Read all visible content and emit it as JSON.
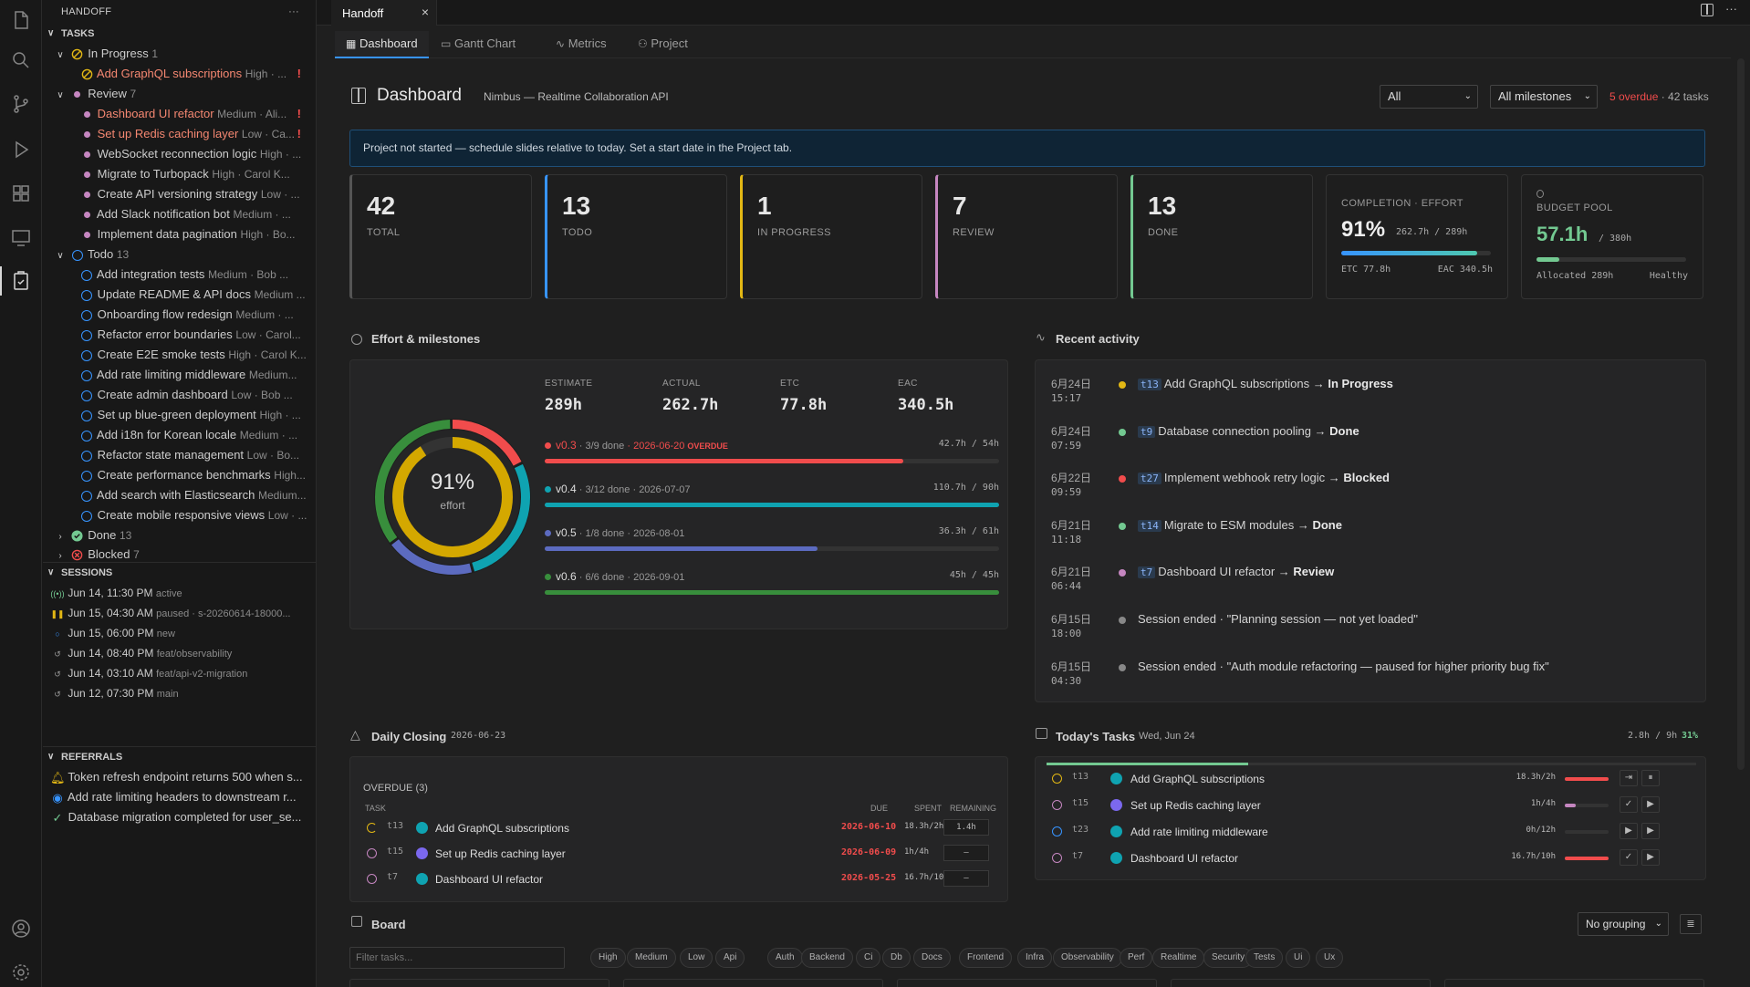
{
  "sidebar": {
    "title": "HANDOFF",
    "more": "···",
    "tasks_header": "TASKS",
    "groups": {
      "in_progress": {
        "label": "In Progress",
        "count": "1"
      },
      "review": {
        "label": "Review",
        "count": "7"
      },
      "todo": {
        "label": "Todo",
        "count": "13"
      },
      "done": {
        "label": "Done",
        "count": "13"
      },
      "blocked": {
        "label": "Blocked",
        "count": "7"
      }
    },
    "in_progress_items": [
      {
        "name": "Add GraphQL subscriptions",
        "meta": "High · ..."
      }
    ],
    "review_items": [
      {
        "name": "Dashboard UI refactor",
        "meta": "Medium · Ali..."
      },
      {
        "name": "Set up Redis caching layer",
        "meta": "Low · Ca..."
      },
      {
        "name": "WebSocket reconnection logic",
        "meta": "High · ..."
      },
      {
        "name": "Migrate to Turbopack",
        "meta": "High · Carol K..."
      },
      {
        "name": "Create API versioning strategy",
        "meta": "Low · ..."
      },
      {
        "name": "Add Slack notification bot",
        "meta": "Medium · ..."
      },
      {
        "name": "Implement data pagination",
        "meta": "High · Bo..."
      }
    ],
    "todo_items": [
      {
        "name": "Add integration tests",
        "meta": "Medium · Bob ..."
      },
      {
        "name": "Update README & API docs",
        "meta": "Medium ..."
      },
      {
        "name": "Onboarding flow redesign",
        "meta": "Medium · ..."
      },
      {
        "name": "Refactor error boundaries",
        "meta": "Low · Carol..."
      },
      {
        "name": "Create E2E smoke tests",
        "meta": "High · Carol K..."
      },
      {
        "name": "Add rate limiting middleware",
        "meta": "Medium..."
      },
      {
        "name": "Create admin dashboard",
        "meta": "Low · Bob ..."
      },
      {
        "name": "Set up blue-green deployment",
        "meta": "High · ..."
      },
      {
        "name": "Add i18n for Korean locale",
        "meta": "Medium · ..."
      },
      {
        "name": "Refactor state management",
        "meta": "Low · Bo..."
      },
      {
        "name": "Create performance benchmarks",
        "meta": "High..."
      },
      {
        "name": "Add search with Elasticsearch",
        "meta": "Medium..."
      },
      {
        "name": "Create mobile responsive views",
        "meta": "Low · ..."
      }
    ],
    "sessions_header": "SESSIONS",
    "sessions": [
      {
        "date": "Jun 14, 11:30 PM",
        "meta": "active"
      },
      {
        "date": "Jun 15, 04:30 AM",
        "meta": "paused · s-20260614-18000..."
      },
      {
        "date": "Jun 15, 06:00 PM",
        "meta": "new"
      },
      {
        "date": "Jun 14, 08:40 PM",
        "meta": "feat/observability"
      },
      {
        "date": "Jun 14, 03:10 AM",
        "meta": "feat/api-v2-migration"
      },
      {
        "date": "Jun 12, 07:30 PM",
        "meta": "main"
      }
    ],
    "referrals_header": "REFERRALS",
    "referrals": [
      "Token refresh endpoint returns 500 when s...",
      "Add rate limiting headers to downstream r...",
      "Database migration completed for user_se..."
    ]
  },
  "tab": {
    "label": "Handoff",
    "close": "×"
  },
  "subtabs": [
    "Dashboard",
    "Gantt Chart",
    "Metrics",
    "Project"
  ],
  "header": {
    "title": "Dashboard",
    "subtitle": "Nimbus — Realtime Collaboration API",
    "filter1": "All",
    "filter2": "All milestones",
    "overdue": "5 overdue",
    "tasks": "· 42 tasks"
  },
  "banner": "Project not started — schedule slides relative to today. Set a start date in the Project tab.",
  "stats": [
    {
      "num": "42",
      "label": "TOTAL",
      "color": "#555555"
    },
    {
      "num": "13",
      "label": "TODO",
      "color": "#3794ff"
    },
    {
      "num": "1",
      "label": "IN PROGRESS",
      "color": "#e2b714"
    },
    {
      "num": "7",
      "label": "REVIEW",
      "color": "#c586c0"
    },
    {
      "num": "13",
      "label": "DONE",
      "color": "#73c991"
    }
  ],
  "completion": {
    "label": "COMPLETION · EFFORT",
    "pct": "91%",
    "sub": "262.7h / 289h",
    "etc": "ETC 77.8h",
    "eac": "EAC 340.5h",
    "fill": 0.91
  },
  "budget": {
    "label": "BUDGET POOL",
    "value": "57.1h",
    "of": "/ 380h",
    "allocated": "Allocated 289h",
    "status": "Healthy",
    "fill": 0.15
  },
  "effort": {
    "title": "Effort & milestones",
    "donut_pct": "91%",
    "donut_label": "effort",
    "metrics": [
      {
        "label": "ESTIMATE",
        "value": "289h"
      },
      {
        "label": "ACTUAL",
        "value": "262.7h"
      },
      {
        "label": "ETC",
        "value": "77.8h"
      },
      {
        "label": "EAC",
        "value": "340.5h"
      }
    ],
    "milestones": [
      {
        "name": "v0.3",
        "done": "· 3/9 done",
        "date": "· 2026-06-20",
        "flag": "OVERDUE",
        "hours": "42.7h / 54h",
        "color": "#f14c4c",
        "fill": 0.79
      },
      {
        "name": "v0.4",
        "done": "· 3/12 done",
        "date": "· 2026-07-07",
        "flag": "",
        "hours": "110.7h / 90h",
        "color": "#0fa3b1",
        "fill": 1.0
      },
      {
        "name": "v0.5",
        "done": "· 1/8 done",
        "date": "· 2026-08-01",
        "flag": "",
        "hours": "36.3h / 61h",
        "color": "#5c6bc0",
        "fill": 0.6
      },
      {
        "name": "v0.6",
        "done": "· 6/6 done",
        "date": "· 2026-09-01",
        "flag": "",
        "hours": "45h / 45h",
        "color": "#388e3c",
        "fill": 1.0
      }
    ]
  },
  "activity": {
    "title": "Recent activity",
    "items": [
      {
        "date": "6月24日",
        "time": "15:17",
        "color": "#e2b714",
        "tid": "t13",
        "text": "Add GraphQL subscriptions →",
        "status": "In Progress"
      },
      {
        "date": "6月24日",
        "time": "07:59",
        "color": "#73c991",
        "tid": "t9",
        "text": "Database connection pooling →",
        "status": "Done"
      },
      {
        "date": "6月22日",
        "time": "09:59",
        "color": "#f14c4c",
        "tid": "t27",
        "text": "Implement webhook retry logic →",
        "status": "Blocked"
      },
      {
        "date": "6月21日",
        "time": "11:18",
        "color": "#73c991",
        "tid": "t14",
        "text": "Migrate to ESM modules →",
        "status": "Done"
      },
      {
        "date": "6月21日",
        "time": "06:44",
        "color": "#c586c0",
        "tid": "t7",
        "text": "Dashboard UI refactor →",
        "status": "Review"
      },
      {
        "date": "6月15日",
        "time": "18:00",
        "color": "#888888",
        "tid": "",
        "text": "Session ended · \"Planning session — not yet loaded\"",
        "status": ""
      },
      {
        "date": "6月15日",
        "time": "04:30",
        "color": "#888888",
        "tid": "",
        "text": "Session ended · \"Auth module refactoring — paused for higher priority bug fix\"",
        "status": ""
      }
    ]
  },
  "closing": {
    "title": "Daily Closing",
    "date": "2026-06-23",
    "overdue_header": "OVERDUE (3)",
    "cols": [
      "TASK",
      "DUE",
      "SPENT",
      "REMAINING"
    ],
    "rows": [
      {
        "tid": "t13",
        "name": "Add GraphQL subscriptions",
        "due": "2026-06-10",
        "spent": "18.3h/2h",
        "remaining": "1.4h"
      },
      {
        "tid": "t15",
        "name": "Set up Redis caching layer",
        "due": "2026-06-09",
        "spent": "1h/4h",
        "remaining": "–"
      },
      {
        "tid": "t7",
        "name": "Dashboard UI refactor",
        "due": "2026-05-25",
        "spent": "16.7h/10h",
        "remaining": "–"
      }
    ]
  },
  "today": {
    "title": "Today's Tasks",
    "date": "Wed, Jun 24",
    "summary": "2.8h / 9h",
    "pct": "31%",
    "progress": 0.31,
    "rows": [
      {
        "tid": "t13",
        "name": "Add GraphQL subscriptions",
        "hours": "18.3h/2h",
        "fill": 1.0,
        "color": "#f14c4c",
        "a1": "⇥",
        "a2": "⏸"
      },
      {
        "tid": "t15",
        "name": "Set up Redis caching layer",
        "hours": "1h/4h",
        "fill": 0.25,
        "color": "#c586c0",
        "a1": "✓",
        "a2": "▶"
      },
      {
        "tid": "t23",
        "name": "Add rate limiting middleware",
        "hours": "0h/12h",
        "fill": 0.0,
        "color": "#3794ff",
        "a1": "▶",
        "a2": "▶"
      },
      {
        "tid": "t7",
        "name": "Dashboard UI refactor",
        "hours": "16.7h/10h",
        "fill": 1.0,
        "color": "#f14c4c",
        "a1": "✓",
        "a2": "▶"
      }
    ]
  },
  "board": {
    "title": "Board",
    "grouping": "No grouping",
    "filter_placeholder": "Filter tasks...",
    "chips": [
      "High",
      "Medium",
      "Low",
      "Api",
      "Auth",
      "Backend",
      "Ci",
      "Db",
      "Docs",
      "Frontend",
      "Infra",
      "Observability",
      "Perf",
      "Realtime",
      "Security",
      "Tests",
      "Ui",
      "Ux"
    ]
  }
}
